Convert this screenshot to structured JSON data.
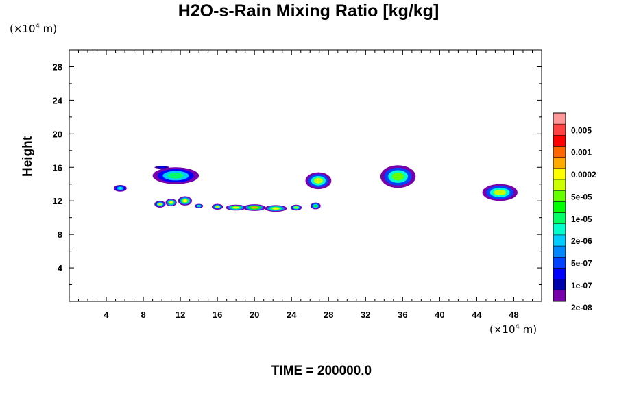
{
  "chart_data": {
    "type": "heatmap",
    "title": "H2O-s-Rain Mixing Ratio [kg/kg]",
    "xlabel": "",
    "ylabel": "Height",
    "x_unit": "(×10⁴ m)",
    "y_unit": "(×10⁴ m)",
    "xlim": [
      0,
      51
    ],
    "ylim": [
      0,
      30
    ],
    "x_ticks": [
      4,
      8,
      12,
      16,
      20,
      24,
      28,
      32,
      36,
      40,
      44,
      48
    ],
    "y_ticks": [
      4,
      8,
      12,
      16,
      20,
      24,
      28
    ],
    "colorbar_labels": [
      "0.005",
      "0.001",
      "0.0002",
      "5e-05",
      "1e-05",
      "2e-06",
      "5e-07",
      "1e-07",
      "2e-08"
    ],
    "colorbar_colors": [
      "#ff9999",
      "#ff4444",
      "#ff0000",
      "#ff6600",
      "#ffaa00",
      "#ffff00",
      "#ccff00",
      "#66ff00",
      "#00ff00",
      "#00ff66",
      "#00ffcc",
      "#00ccff",
      "#0088ff",
      "#0044ff",
      "#0000ff",
      "#0000aa",
      "#7700aa"
    ],
    "features": [
      {
        "x": 5.5,
        "y": 13.5,
        "w": 1.4,
        "h": 0.8,
        "level": 0.35
      },
      {
        "x": 11.5,
        "y": 15.0,
        "w": 5.0,
        "h": 2.0,
        "level": 0.45
      },
      {
        "x": 10.0,
        "y": 16.0,
        "w": 1.6,
        "h": 0.3,
        "level": 0.1
      },
      {
        "x": 9.8,
        "y": 11.6,
        "w": 1.2,
        "h": 0.8,
        "level": 0.6
      },
      {
        "x": 11.0,
        "y": 11.8,
        "w": 1.2,
        "h": 0.9,
        "level": 0.7
      },
      {
        "x": 12.5,
        "y": 12.0,
        "w": 1.5,
        "h": 1.1,
        "level": 0.7
      },
      {
        "x": 14.0,
        "y": 11.4,
        "w": 0.9,
        "h": 0.5,
        "level": 0.5
      },
      {
        "x": 16.0,
        "y": 11.3,
        "w": 1.2,
        "h": 0.7,
        "level": 0.6
      },
      {
        "x": 18.0,
        "y": 11.2,
        "w": 2.2,
        "h": 0.7,
        "level": 0.7
      },
      {
        "x": 20.0,
        "y": 11.2,
        "w": 2.4,
        "h": 0.8,
        "level": 0.75
      },
      {
        "x": 22.3,
        "y": 11.1,
        "w": 2.4,
        "h": 0.8,
        "level": 0.7
      },
      {
        "x": 24.5,
        "y": 11.2,
        "w": 1.2,
        "h": 0.7,
        "level": 0.6
      },
      {
        "x": 26.6,
        "y": 11.4,
        "w": 1.1,
        "h": 0.8,
        "level": 0.5
      },
      {
        "x": 26.9,
        "y": 14.4,
        "w": 2.8,
        "h": 2.0,
        "level": 0.6
      },
      {
        "x": 35.5,
        "y": 14.9,
        "w": 3.8,
        "h": 2.7,
        "level": 0.55
      },
      {
        "x": 46.5,
        "y": 13.0,
        "w": 3.8,
        "h": 2.0,
        "level": 0.6
      }
    ]
  },
  "time_label": "TIME = 200000.0",
  "x_unit_text": "(×10",
  "x_unit_exp": "4",
  "x_unit_tail": " m)",
  "y_unit_text": "(×10",
  "y_unit_exp": "4",
  "y_unit_tail": " m)"
}
